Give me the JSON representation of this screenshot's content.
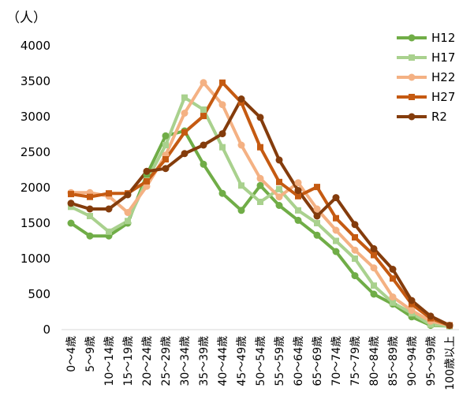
{
  "chart_data": {
    "type": "line",
    "unit_label": "（人）",
    "y_ticks": [
      "4000",
      "3500",
      "3000",
      "2500",
      "2000",
      "1500",
      "1000",
      "500",
      "0"
    ],
    "ylim": [
      0,
      4000
    ],
    "grid": false,
    "legend_position": "top-right",
    "categories": [
      "0～4歳",
      "5～9歳",
      "10～14歳",
      "15～19歳",
      "20～24歳",
      "25～29歳",
      "30～34歳",
      "35～39歳",
      "40～44歳",
      "45～49歳",
      "50～54歳",
      "55～59歳",
      "60～64歳",
      "65～69歳",
      "70～74歳",
      "75～79歳",
      "80～84歳",
      "85～89歳",
      "90～94歳",
      "95～99歳",
      "100歳以上"
    ],
    "series": [
      {
        "name": "H12",
        "color": "#70ad47",
        "marker": "circle",
        "values": [
          1500,
          1320,
          1320,
          1500,
          2180,
          2730,
          2800,
          2330,
          1920,
          1680,
          2030,
          1750,
          1540,
          1330,
          1100,
          760,
          500,
          360,
          180,
          60,
          50
        ]
      },
      {
        "name": "H17",
        "color": "#a9d18e",
        "marker": "square",
        "values": [
          1730,
          1600,
          1380,
          1530,
          2100,
          2600,
          3270,
          3100,
          2570,
          2030,
          1800,
          1980,
          1680,
          1500,
          1250,
          1000,
          620,
          380,
          230,
          70,
          50
        ]
      },
      {
        "name": "H22",
        "color": "#f4b183",
        "marker": "circle",
        "values": [
          1930,
          1930,
          1880,
          1650,
          2020,
          2460,
          3050,
          3480,
          3170,
          2600,
          2130,
          1870,
          2070,
          1700,
          1400,
          1120,
          870,
          460,
          270,
          120,
          60
        ]
      },
      {
        "name": "H27",
        "color": "#c55a11",
        "marker": "square",
        "values": [
          1910,
          1870,
          1920,
          1920,
          2090,
          2400,
          2780,
          3010,
          3480,
          3200,
          2570,
          2080,
          1880,
          2010,
          1570,
          1300,
          1050,
          720,
          360,
          160,
          60
        ]
      },
      {
        "name": "R2",
        "color": "#843c0c",
        "marker": "circle",
        "values": [
          1780,
          1700,
          1700,
          1900,
          2230,
          2270,
          2480,
          2600,
          2760,
          3250,
          2990,
          2390,
          1960,
          1600,
          1860,
          1480,
          1140,
          850,
          410,
          190,
          60
        ]
      }
    ]
  }
}
